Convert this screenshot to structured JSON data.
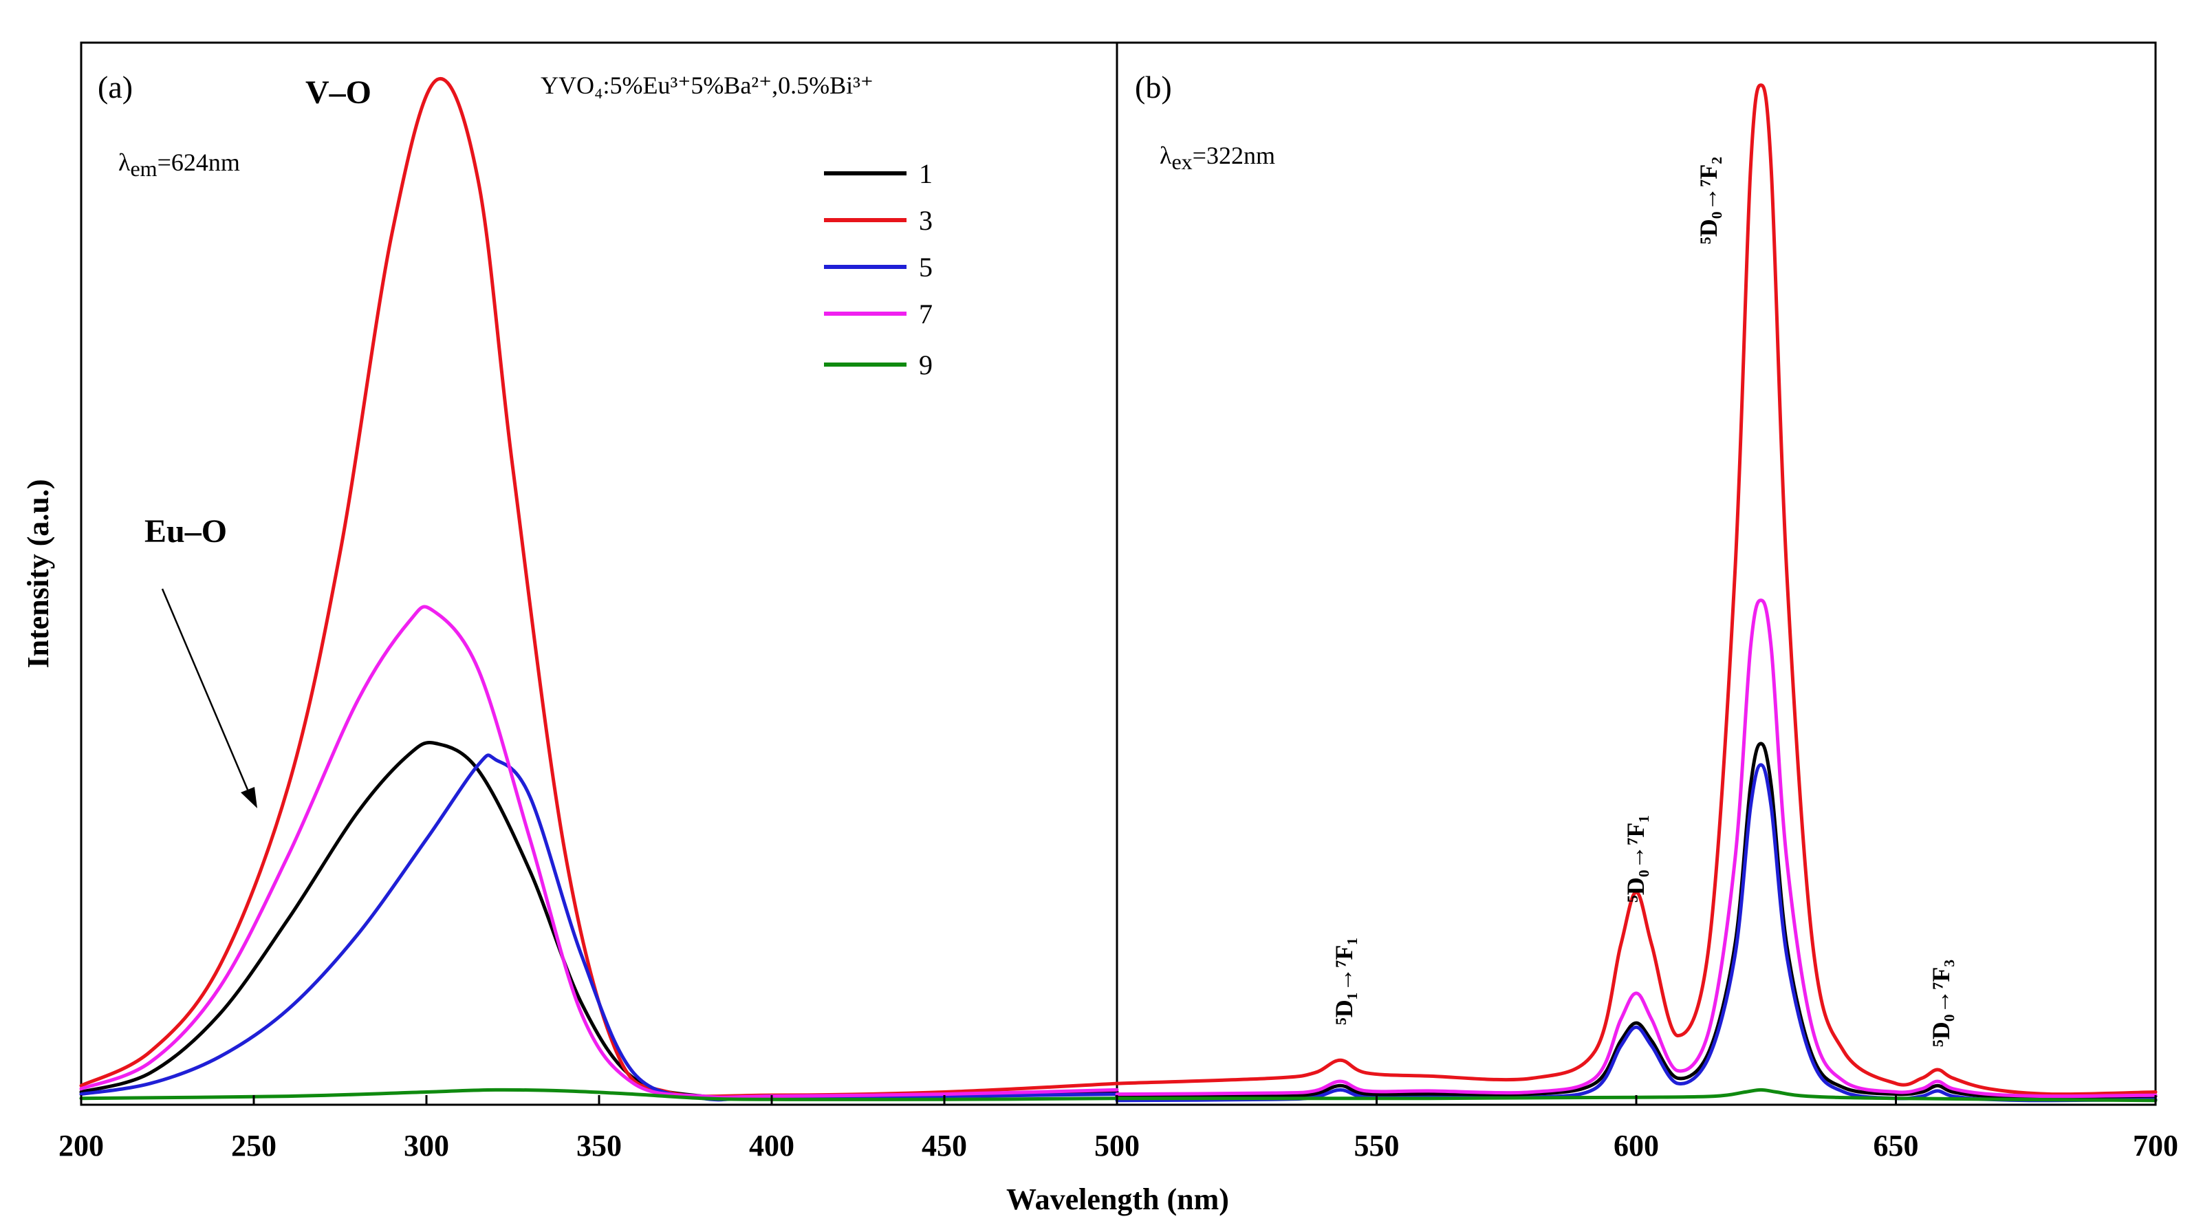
{
  "chart_data": {
    "type": "line",
    "ylabel": "Intensity (a.u.)",
    "xlabel": "Wavelength  (nm)",
    "ylim": [
      0,
      1.0
    ],
    "legend": {
      "placement": "top-right of panel (a)",
      "entries": [
        {
          "label": "1",
          "color": "#000000"
        },
        {
          "label": "3",
          "color": "#e8141b"
        },
        {
          "label": "5",
          "color": "#1f1fd6"
        },
        {
          "label": "7",
          "color": "#f020f0"
        },
        {
          "label": "9",
          "color": "#0f8a0f"
        }
      ]
    },
    "panels": [
      {
        "id": "a",
        "label": "(a)",
        "xlim": [
          200,
          500
        ],
        "xticks": [
          "200",
          "250",
          "300",
          "350",
          "400",
          "450",
          "500"
        ],
        "annotations": {
          "vo": "V–O",
          "euo": "Eu–O",
          "composition": "YVO₄:5%Eu³⁺5%Ba²⁺,0.5%Bi³⁺",
          "lambda_sym": "λ",
          "lambda_sub": "em",
          "lambda_val": "=624nm"
        },
        "series": [
          {
            "name": "1",
            "color": "#000000",
            "x": [
              200,
              220,
              240,
              260,
              280,
              295,
              303,
              315,
              330,
              345,
              360,
              380,
              400,
              450,
              500
            ],
            "y": [
              0.012,
              0.03,
              0.085,
              0.175,
              0.275,
              0.33,
              0.34,
              0.315,
              0.22,
              0.095,
              0.025,
              0.008,
              0.008,
              0.01,
              0.012
            ]
          },
          {
            "name": "3",
            "color": "#e8141b",
            "x": [
              200,
              220,
              240,
              260,
              275,
              290,
              303,
              315,
              325,
              340,
              355,
              370,
              400,
              450,
              500
            ],
            "y": [
              0.018,
              0.05,
              0.13,
              0.3,
              0.52,
              0.82,
              0.965,
              0.87,
              0.6,
              0.24,
              0.05,
              0.012,
              0.009,
              0.012,
              0.02
            ]
          },
          {
            "name": "5",
            "color": "#1f1fd6",
            "x": [
              200,
              220,
              240,
              260,
              280,
              300,
              315,
              320,
              330,
              345,
              360,
              380,
              400,
              450,
              500
            ],
            "y": [
              0.01,
              0.02,
              0.045,
              0.09,
              0.16,
              0.25,
              0.32,
              0.325,
              0.29,
              0.14,
              0.03,
              0.006,
              0.008,
              0.008,
              0.01
            ]
          },
          {
            "name": "7",
            "color": "#f020f0",
            "x": [
              200,
              220,
              240,
              260,
              280,
              295,
              302,
              315,
              330,
              345,
              360,
              380,
              400,
              450,
              500
            ],
            "y": [
              0.015,
              0.04,
              0.11,
              0.235,
              0.38,
              0.455,
              0.465,
              0.41,
              0.25,
              0.085,
              0.02,
              0.008,
              0.008,
              0.01,
              0.014
            ]
          },
          {
            "name": "9",
            "color": "#0f8a0f",
            "x": [
              200,
              260,
              300,
              320,
              340,
              360,
              380,
              400,
              450,
              500
            ],
            "y": [
              0.006,
              0.008,
              0.012,
              0.014,
              0.013,
              0.01,
              0.006,
              0.005,
              0.005,
              0.006
            ]
          }
        ]
      },
      {
        "id": "b",
        "label": "(b)",
        "xlim": [
          500,
          700
        ],
        "xticks": [
          "500",
          "550",
          "600",
          "650",
          "700"
        ],
        "annotations": {
          "lambda_sym": "λ",
          "lambda_sub": "ex",
          "lambda_val": "=322nm",
          "t1": "⁵D₁→⁷F₁",
          "t2": "⁵D₀→⁷F₁",
          "t3": "⁵D₀→⁷F₂",
          "t4": "⁵D₀→⁷F₃"
        },
        "series": [
          {
            "name": "1",
            "color": "#000000",
            "x": [
              500,
              530,
              538,
              543,
              548,
              560,
              580,
              592,
              597,
              600,
              603,
              608,
              614,
              619,
              622,
              624,
              626,
              629,
              634,
              640,
              650,
              655,
              658,
              661,
              668,
              680,
              700
            ],
            "y": [
              0.008,
              0.008,
              0.01,
              0.018,
              0.01,
              0.01,
              0.01,
              0.02,
              0.06,
              0.077,
              0.06,
              0.025,
              0.05,
              0.15,
              0.3,
              0.34,
              0.3,
              0.15,
              0.045,
              0.016,
              0.01,
              0.012,
              0.018,
              0.012,
              0.008,
              0.007,
              0.008
            ]
          },
          {
            "name": "3",
            "color": "#e8141b",
            "x": [
              500,
              530,
              538,
              543,
              548,
              560,
              580,
              592,
              597,
              600,
              603,
              608,
              614,
              619,
              622,
              624,
              626,
              629,
              634,
              640,
              650,
              655,
              658,
              661,
              668,
              680,
              700
            ],
            "y": [
              0.02,
              0.025,
              0.03,
              0.042,
              0.03,
              0.027,
              0.025,
              0.05,
              0.15,
              0.2,
              0.15,
              0.065,
              0.15,
              0.5,
              0.88,
              0.96,
              0.88,
              0.5,
              0.15,
              0.05,
              0.02,
              0.025,
              0.033,
              0.025,
              0.015,
              0.01,
              0.012
            ]
          },
          {
            "name": "5",
            "color": "#1f1fd6",
            "x": [
              500,
              530,
              538,
              543,
              548,
              560,
              580,
              592,
              597,
              600,
              603,
              608,
              614,
              619,
              622,
              624,
              626,
              629,
              634,
              640,
              650,
              655,
              658,
              661,
              668,
              680,
              700
            ],
            "y": [
              0.004,
              0.005,
              0.007,
              0.014,
              0.007,
              0.007,
              0.007,
              0.015,
              0.055,
              0.073,
              0.055,
              0.02,
              0.045,
              0.14,
              0.28,
              0.32,
              0.28,
              0.14,
              0.04,
              0.012,
              0.006,
              0.008,
              0.013,
              0.008,
              0.005,
              0.004,
              0.005
            ]
          },
          {
            "name": "7",
            "color": "#f020f0",
            "x": [
              500,
              530,
              538,
              543,
              548,
              560,
              580,
              592,
              597,
              600,
              603,
              608,
              614,
              619,
              622,
              624,
              626,
              629,
              634,
              640,
              650,
              655,
              658,
              661,
              668,
              680,
              700
            ],
            "y": [
              0.01,
              0.011,
              0.013,
              0.022,
              0.013,
              0.013,
              0.012,
              0.025,
              0.08,
              0.105,
              0.08,
              0.032,
              0.07,
              0.23,
              0.43,
              0.475,
              0.43,
              0.23,
              0.07,
              0.022,
              0.012,
              0.015,
              0.022,
              0.015,
              0.01,
              0.008,
              0.009
            ]
          },
          {
            "name": "9",
            "color": "#0f8a0f",
            "x": [
              500,
              560,
              600,
              615,
              621,
              624,
              627,
              633,
              650,
              700
            ],
            "y": [
              0.006,
              0.006,
              0.007,
              0.008,
              0.012,
              0.014,
              0.012,
              0.008,
              0.006,
              0.004
            ]
          }
        ]
      }
    ]
  }
}
